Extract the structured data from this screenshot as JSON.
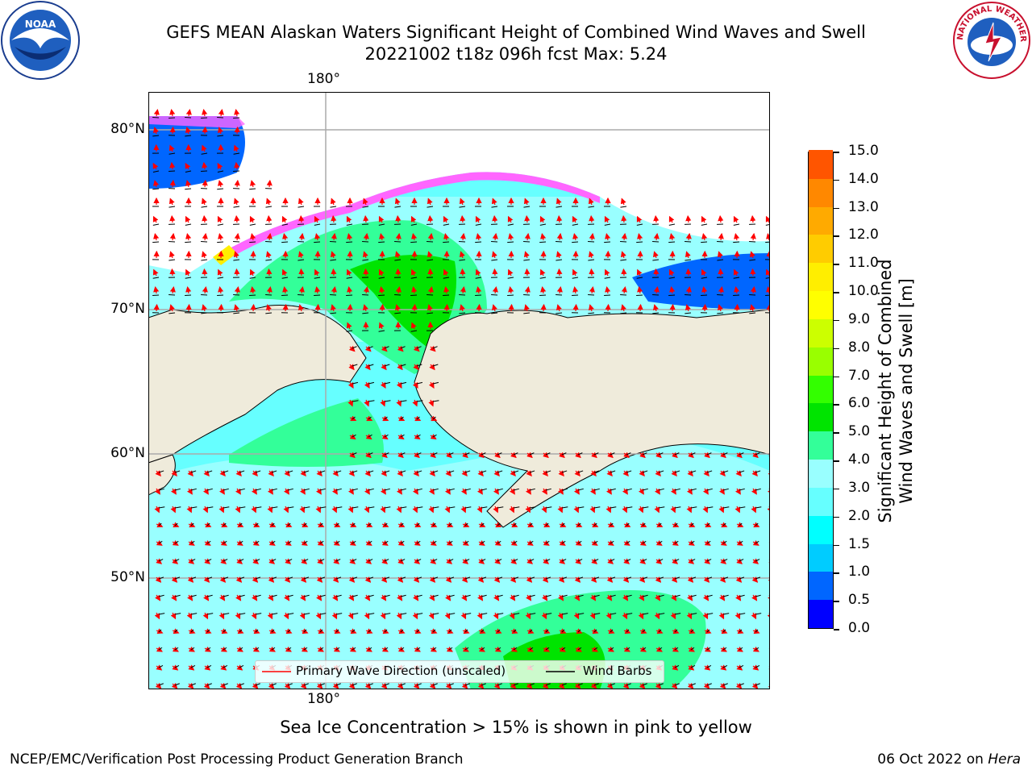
{
  "title": {
    "line1": "GEFS MEAN Alaskan Waters Significant Height of Combined Wind Waves and Swell",
    "line2": "20221002 t18z 096h fcst   Max: 5.24"
  },
  "logos": {
    "noaa_text": "NOAA",
    "nws_text": "NATIONAL WEATHER SERVICE"
  },
  "map": {
    "lon_label_top": "180°",
    "lon_label_bottom": "180°",
    "lat_labels": [
      "80°N",
      "70°N",
      "60°N",
      "50°N"
    ]
  },
  "colorbar": {
    "ticks": [
      "15.0",
      "14.0",
      "13.0",
      "12.0",
      "11.0",
      "10.0",
      "9.0",
      "8.0",
      "7.0",
      "6.0",
      "5.0",
      "4.0",
      "3.0",
      "2.0",
      "1.5",
      "1.0",
      "0.5",
      "0.0"
    ],
    "colors": [
      "#0000ff",
      "#0066ff",
      "#00ccff",
      "#00ffff",
      "#66ffff",
      "#99ffff",
      "#33ff99",
      "#00e400",
      "#33ff00",
      "#99ff00",
      "#ccff00",
      "#ffff00",
      "#ffee00",
      "#ffcc00",
      "#ffaa00",
      "#ff8800",
      "#ff5500",
      "#ff2200",
      "#ff0000"
    ],
    "label_line1": "Significant Height of Combined",
    "label_line2": "Wind Waves and Swell [m]"
  },
  "legend": {
    "wave_label": "Primary Wave Direction (unscaled)",
    "wind_label": "Wind Barbs"
  },
  "footer": {
    "note": "Sea Ice Concentration > 15% is shown in pink to yellow",
    "left": "NCEP/EMC/Verification Post Processing Product Generation Branch",
    "right_date": "06 Oct 2022 on ",
    "right_host": "Hera"
  }
}
